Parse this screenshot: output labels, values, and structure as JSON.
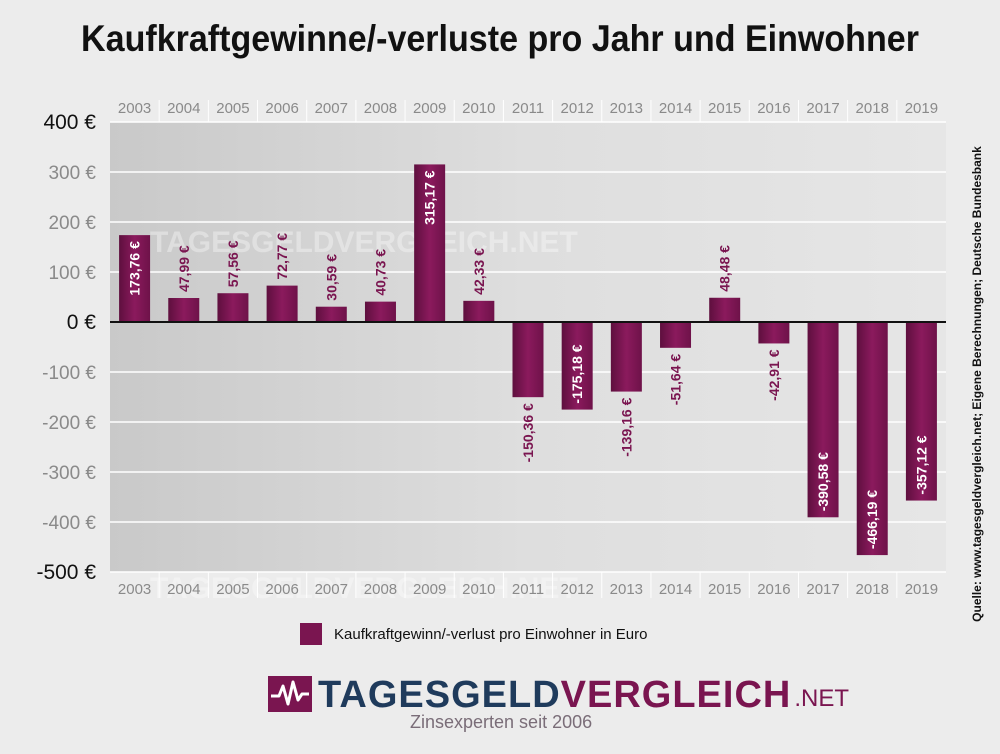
{
  "chart_data": {
    "type": "bar",
    "title": "Kaufkraftgewinne/-verluste pro Jahr und Einwohner",
    "categories": [
      "2003",
      "2004",
      "2005",
      "2006",
      "2007",
      "2008",
      "2009",
      "2010",
      "2011",
      "2012",
      "2013",
      "2014",
      "2015",
      "2016",
      "2017",
      "2018",
      "2019"
    ],
    "values": [
      173.76,
      47.99,
      57.56,
      72.77,
      30.59,
      40.73,
      315.17,
      42.33,
      -150.36,
      -175.18,
      -139.16,
      -51.64,
      48.48,
      -42.91,
      -390.58,
      -466.19,
      -357.12
    ],
    "value_labels": [
      "173,76 €",
      "47,99 €",
      "57,56 €",
      "72,77 €",
      "30,59 €",
      "40,73 €",
      "315,17 €",
      "42,33 €",
      "-150,36 €",
      "-175,18 €",
      "-139,16 €",
      "-51,64 €",
      "48,48 €",
      "-42,91 €",
      "-390,58 €",
      "-466,19 €",
      "-357,12 €"
    ],
    "ylim": [
      -500,
      400
    ],
    "yticks": [
      400,
      300,
      200,
      100,
      0,
      -100,
      -200,
      -300,
      -400,
      -500
    ],
    "ytick_labels": [
      "400 €",
      "300 €",
      "200 €",
      "100 €",
      "0 €",
      "-100 €",
      "-200 €",
      "-300 €",
      "-400 €",
      "-500 €"
    ],
    "legend": "Kaufkraftgewinn/-verlust pro Einwohner in Euro",
    "legend_position": "bottom",
    "grid": true,
    "bar_color": "#7a1550",
    "source": "Quelle: www.tagesgeldvergleich.net; Eigene Berechnungen; Deutsche Bundesbank",
    "watermark": "TAGESGELDVERGLEICH.NET"
  },
  "brand": {
    "name_part1": "TAGESGELD",
    "name_part2": "VERGLEICH",
    "tld": ".NET",
    "tagline": "Zinsexperten seit 2006"
  }
}
